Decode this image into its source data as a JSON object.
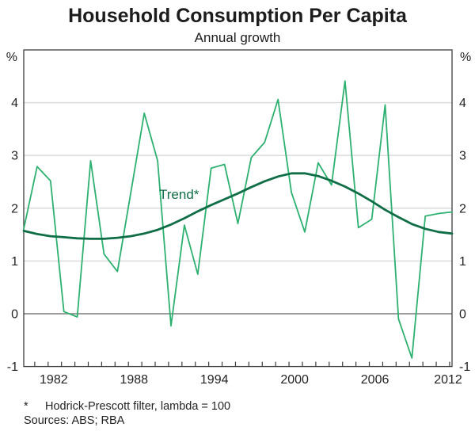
{
  "header": {
    "title": "Household Consumption Per Capita",
    "subtitle": "Annual growth"
  },
  "chart_data": {
    "type": "line",
    "x": [
      1980,
      1981,
      1982,
      1983,
      1984,
      1985,
      1986,
      1987,
      1988,
      1989,
      1990,
      1991,
      1992,
      1993,
      1994,
      1995,
      1996,
      1997,
      1998,
      1999,
      2000,
      2001,
      2002,
      2003,
      2004,
      2005,
      2006,
      2007,
      2008,
      2009,
      2010,
      2011,
      2012
    ],
    "series": [
      {
        "name": "Annual growth",
        "color": "#2eb170",
        "width": 1.8,
        "values": [
          1.61,
          2.79,
          2.52,
          0.04,
          -0.06,
          2.9,
          1.13,
          0.8,
          2.3,
          3.8,
          2.9,
          -0.23,
          1.68,
          0.75,
          2.76,
          2.83,
          1.71,
          2.96,
          3.25,
          4.06,
          2.3,
          1.55,
          2.86,
          2.44,
          4.41,
          1.63,
          1.79,
          3.96,
          -0.1,
          -0.84,
          1.85,
          1.9,
          1.93
        ]
      },
      {
        "name": "Trend",
        "color": "#0f6e45",
        "width": 2.8,
        "values": [
          1.57,
          1.51,
          1.47,
          1.45,
          1.43,
          1.42,
          1.42,
          1.44,
          1.47,
          1.52,
          1.59,
          1.69,
          1.81,
          1.94,
          2.06,
          2.17,
          2.28,
          2.4,
          2.51,
          2.6,
          2.66,
          2.66,
          2.61,
          2.52,
          2.41,
          2.28,
          2.13,
          1.97,
          1.83,
          1.7,
          1.61,
          1.55,
          1.52
        ]
      }
    ],
    "annotation": {
      "label": "Trend*",
      "color": "#0f6e45"
    },
    "y_axis": {
      "unit": "%",
      "min": -1,
      "max": 5,
      "ticks": [
        -1,
        0,
        1,
        2,
        3,
        4
      ],
      "zero_line": 0
    },
    "x_axis": {
      "labels": [
        1982,
        1988,
        1994,
        2000,
        2006,
        2012
      ]
    },
    "grid": true,
    "legend": "none",
    "title": "Household Consumption Per Capita",
    "xlabel": "",
    "ylabel": "%"
  },
  "footnotes": {
    "marker": "*",
    "note": "Hodrick-Prescott filter, lambda = 100",
    "sources": "Sources: ABS; RBA"
  },
  "colors": {
    "data_line": "#2eb170",
    "trend_line": "#0f6e45",
    "gridline": "#d9d9d9",
    "zero_line": "#8f8f8f",
    "border": "#3d3d3d",
    "text": "#232323"
  }
}
